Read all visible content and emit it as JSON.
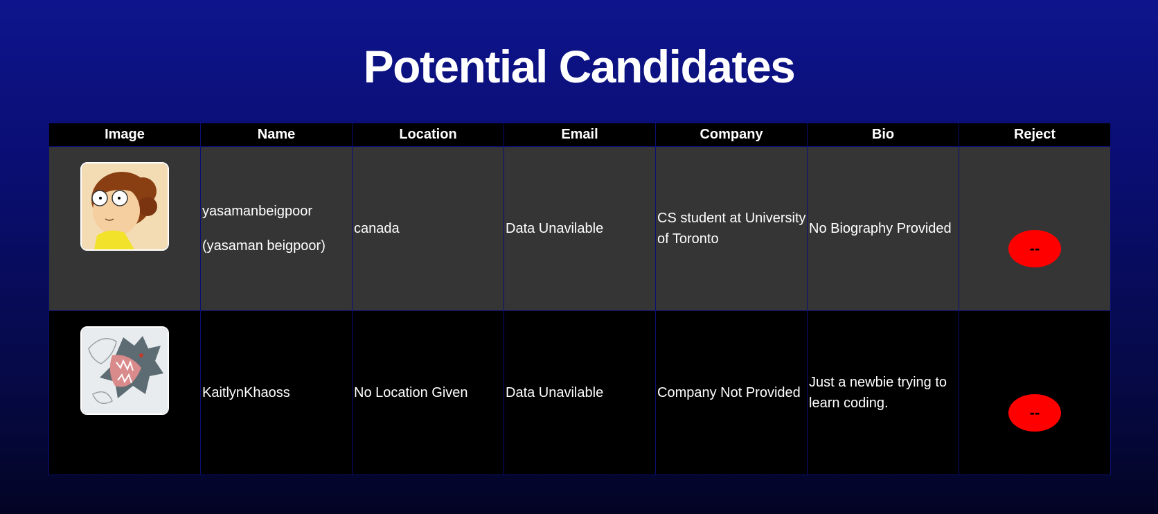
{
  "page": {
    "title": "Potential Candidates"
  },
  "table": {
    "headers": [
      "Image",
      "Name",
      "Location",
      "Email",
      "Company",
      "Bio",
      "Reject"
    ],
    "rows": [
      {
        "avatar_icon": "cartoon-girl-avatar",
        "username": "yasamanbeigpoor",
        "fullname": "(yasaman beigpoor)",
        "location": "canada",
        "email": "Data Unavilable",
        "company": "CS student at University of Toronto",
        "bio": "No Biography Provided",
        "reject_label": "--"
      },
      {
        "avatar_icon": "sketch-creature-avatar",
        "username": "KaitlynKhaoss",
        "fullname": "",
        "location": "No Location Given",
        "email": "Data Unavilable",
        "company": "Company Not Provided",
        "bio": "Just a newbie trying to learn coding.",
        "reject_label": "--"
      }
    ]
  },
  "colors": {
    "background_top": "#0e158c",
    "background_bottom": "#030424",
    "header_row": "#000000",
    "row_even": "#353535",
    "row_odd": "#000000",
    "reject_button": "#ff0000"
  }
}
